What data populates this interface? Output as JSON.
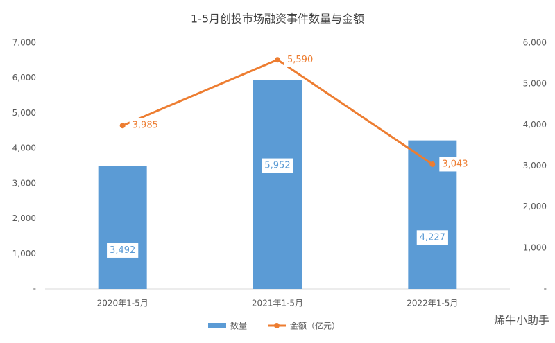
{
  "chart_data": {
    "type": "bar",
    "title": "1-5月创投市场融资事件数量与金额",
    "categories": [
      "2020年1-5月",
      "2021年1-5月",
      "2022年1-5月"
    ],
    "series": [
      {
        "name": "数量",
        "type": "bar",
        "color": "#5b9bd5",
        "values": [
          3492,
          5952,
          4227
        ],
        "value_labels": [
          "3,492",
          "5,952",
          "4,227"
        ]
      },
      {
        "name": "金额（亿元）",
        "type": "line",
        "axis": "y2",
        "color": "#ed7d31",
        "values": [
          3985,
          5590,
          3043
        ],
        "value_labels": [
          "3,985",
          "5,590",
          "3,043"
        ]
      }
    ],
    "ylim": [
      0,
      7000
    ],
    "yticks": [
      {
        "value": 0,
        "label": "-"
      },
      {
        "value": 1000,
        "label": "1,000"
      },
      {
        "value": 2000,
        "label": "2,000"
      },
      {
        "value": 3000,
        "label": "3,000"
      },
      {
        "value": 4000,
        "label": "4,000"
      },
      {
        "value": 5000,
        "label": "5,000"
      },
      {
        "value": 6000,
        "label": "6,000"
      },
      {
        "value": 7000,
        "label": "7,000"
      }
    ],
    "y2lim": [
      0,
      6000
    ],
    "y2ticks": [
      {
        "value": 0,
        "label": "-"
      },
      {
        "value": 1000,
        "label": "1,000"
      },
      {
        "value": 2000,
        "label": "2,000"
      },
      {
        "value": 3000,
        "label": "3,000"
      },
      {
        "value": 4000,
        "label": "4,000"
      },
      {
        "value": 5000,
        "label": "5,000"
      },
      {
        "value": 6000,
        "label": "6,000"
      }
    ],
    "grid": false,
    "legend": "bottom"
  },
  "watermark": "烯牛小助手"
}
